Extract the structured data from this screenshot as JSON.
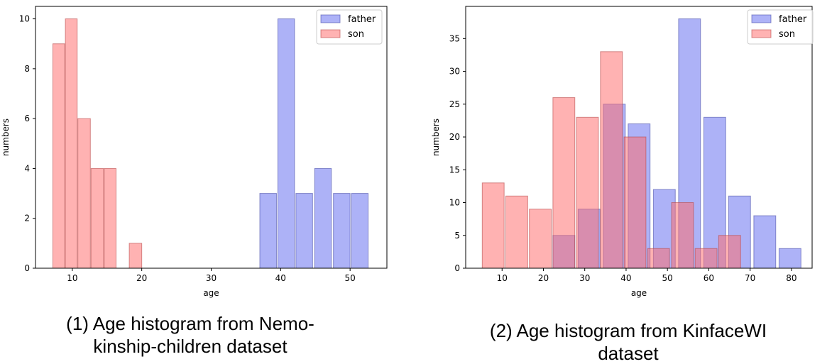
{
  "chart_data": [
    {
      "type": "bar",
      "title": "",
      "xlabel": "age",
      "ylabel": "numbers",
      "xlim": [
        4.7,
        55.3
      ],
      "ylim": [
        0,
        10.5
      ],
      "xticks": [
        10,
        20,
        30,
        40,
        50
      ],
      "yticks": [
        0,
        2,
        4,
        6,
        8,
        10
      ],
      "grid": false,
      "legend_position": "top-right",
      "caption": [
        "(1) Age histogram from Nemo-",
        "kinship-children dataset"
      ],
      "series": [
        {
          "name": "father",
          "color": "#aab0f7",
          "bins": [
            {
              "x0": 37.0,
              "x1": 39.4,
              "value": 3
            },
            {
              "x0": 39.6,
              "x1": 42.0,
              "value": 10
            },
            {
              "x0": 42.2,
              "x1": 44.6,
              "value": 3
            },
            {
              "x0": 44.9,
              "x1": 47.3,
              "value": 4
            },
            {
              "x0": 47.6,
              "x1": 50.0,
              "value": 3
            },
            {
              "x0": 50.2,
              "x1": 52.6,
              "value": 3
            }
          ]
        },
        {
          "name": "son",
          "color": "#ffb0b0",
          "bins": [
            {
              "x0": 7.2,
              "x1": 8.9,
              "value": 9
            },
            {
              "x0": 9.0,
              "x1": 10.7,
              "value": 10
            },
            {
              "x0": 10.8,
              "x1": 12.6,
              "value": 6
            },
            {
              "x0": 12.7,
              "x1": 14.5,
              "value": 4
            },
            {
              "x0": 14.6,
              "x1": 16.3,
              "value": 4
            },
            {
              "x0": 18.2,
              "x1": 20.0,
              "value": 1
            }
          ]
        }
      ]
    },
    {
      "type": "bar",
      "title": "",
      "xlabel": "age",
      "ylabel": "numbers",
      "xlim": [
        1.2,
        85.0
      ],
      "ylim": [
        0,
        39.9
      ],
      "xticks": [
        10,
        20,
        30,
        40,
        50,
        60,
        70,
        80
      ],
      "yticks": [
        0,
        5,
        10,
        15,
        20,
        25,
        30,
        35
      ],
      "grid": false,
      "legend_position": "top-right",
      "caption": [
        "(2) Age histogram from KinfaceWI",
        "dataset"
      ],
      "series": [
        {
          "name": "father",
          "color": "#aab0f7",
          "bins": [
            {
              "x0": 22.3,
              "x1": 27.6,
              "value": 5
            },
            {
              "x0": 28.4,
              "x1": 33.7,
              "value": 9
            },
            {
              "x0": 34.5,
              "x1": 39.8,
              "value": 25
            },
            {
              "x0": 40.5,
              "x1": 45.8,
              "value": 22
            },
            {
              "x0": 46.6,
              "x1": 51.9,
              "value": 12
            },
            {
              "x0": 52.7,
              "x1": 58.0,
              "value": 38
            },
            {
              "x0": 58.8,
              "x1": 64.1,
              "value": 23
            },
            {
              "x0": 64.8,
              "x1": 70.1,
              "value": 11
            },
            {
              "x0": 70.9,
              "x1": 76.2,
              "value": 8
            },
            {
              "x0": 77.0,
              "x1": 82.3,
              "value": 3
            }
          ]
        },
        {
          "name": "son",
          "color": "#ffb0b0",
          "bins": [
            {
              "x0": 5.2,
              "x1": 10.5,
              "value": 13
            },
            {
              "x0": 10.9,
              "x1": 16.2,
              "value": 11
            },
            {
              "x0": 16.6,
              "x1": 21.9,
              "value": 9
            },
            {
              "x0": 22.3,
              "x1": 27.6,
              "value": 26
            },
            {
              "x0": 28.0,
              "x1": 33.3,
              "value": 23
            },
            {
              "x0": 33.8,
              "x1": 39.1,
              "value": 33
            },
            {
              "x0": 39.5,
              "x1": 44.8,
              "value": 20
            },
            {
              "x0": 45.2,
              "x1": 50.5,
              "value": 3
            },
            {
              "x0": 51.0,
              "x1": 56.3,
              "value": 10
            },
            {
              "x0": 56.7,
              "x1": 62.0,
              "value": 3
            },
            {
              "x0": 62.4,
              "x1": 67.7,
              "value": 5
            }
          ]
        }
      ]
    }
  ]
}
